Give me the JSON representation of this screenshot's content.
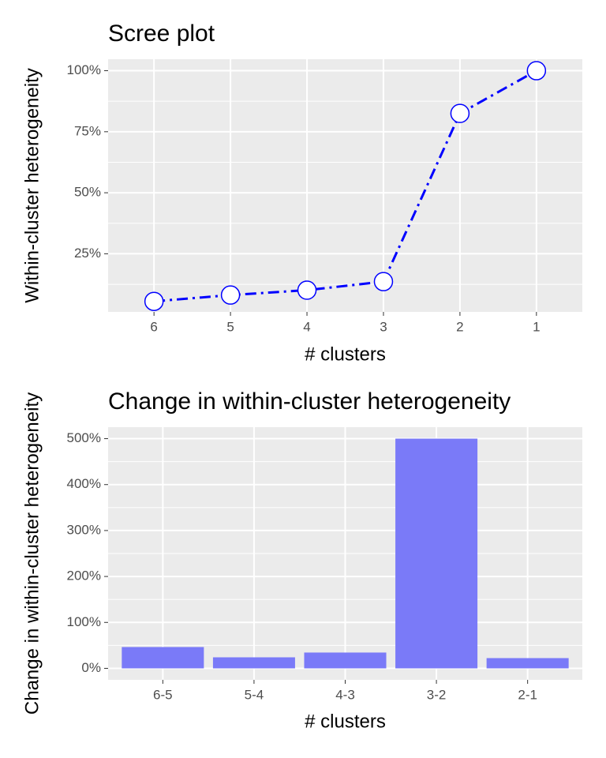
{
  "chart_data": [
    {
      "type": "line",
      "title": "Scree plot",
      "x_label": "# clusters",
      "y_label": "Within-cluster heterogeneity",
      "categories": [
        "6",
        "5",
        "4",
        "3",
        "2",
        "1"
      ],
      "values": [
        5.5,
        8.1,
        10.1,
        13.6,
        82.5,
        100
      ],
      "color": "#0000ff",
      "marker_fill": "#ffffff",
      "line_style": "dotdash",
      "ylim": [
        1.2,
        104.7
      ],
      "yticks": [
        {
          "value": 25,
          "label": "25%"
        },
        {
          "value": 50,
          "label": "50%"
        },
        {
          "value": 75,
          "label": "75%"
        },
        {
          "value": 100,
          "label": "100%"
        }
      ],
      "grid": true
    },
    {
      "type": "bar",
      "title": "Change in within-cluster heterogeneity",
      "x_label": "# clusters",
      "y_label": "Change in within-cluster heterogeneity",
      "categories": [
        "6-5",
        "5-4",
        "4-3",
        "3-2",
        "2-1"
      ],
      "values": [
        46.4,
        24,
        34.4,
        500,
        22.3
      ],
      "color": "#7a7af8",
      "ylim": [
        -25,
        525
      ],
      "yticks": [
        {
          "value": 0,
          "label": "0%"
        },
        {
          "value": 100,
          "label": "100%"
        },
        {
          "value": 200,
          "label": "200%"
        },
        {
          "value": 300,
          "label": "300%"
        },
        {
          "value": 400,
          "label": "400%"
        },
        {
          "value": 500,
          "label": "500%"
        }
      ],
      "grid": true
    }
  ]
}
